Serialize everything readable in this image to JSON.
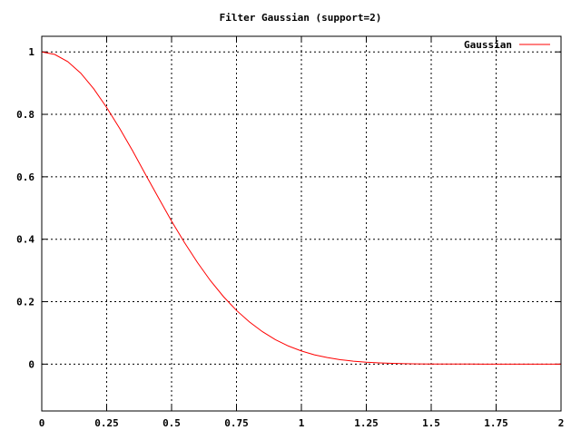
{
  "chart_data": {
    "type": "line",
    "title": "Filter Gaussian (support=2)",
    "xlabel": "",
    "ylabel": "",
    "xlim": [
      0,
      2
    ],
    "ylim": [
      -0.15,
      1.05
    ],
    "xticks": [
      0,
      0.25,
      0.5,
      0.75,
      1,
      1.25,
      1.5,
      1.75,
      2
    ],
    "xtick_labels": [
      "0",
      "0.25",
      "0.5",
      "0.75",
      "1",
      "1.25",
      "1.5",
      "1.75",
      "2"
    ],
    "yticks": [
      0,
      0.2,
      0.4,
      0.6,
      0.8,
      1
    ],
    "ytick_labels": [
      "0",
      "0.2",
      "0.4",
      "0.6",
      "0.8",
      "1"
    ],
    "grid": true,
    "legend": "top-right",
    "series": [
      {
        "name": "Gaussian",
        "color": "#ff0000",
        "x": [
          0,
          0.05,
          0.1,
          0.15,
          0.2,
          0.25,
          0.3,
          0.35,
          0.4,
          0.45,
          0.5,
          0.55,
          0.6,
          0.65,
          0.7,
          0.75,
          0.8,
          0.85,
          0.9,
          0.95,
          1,
          1.05,
          1.1,
          1.15,
          1.2,
          1.25,
          1.3,
          1.35,
          1.4,
          1.45,
          1.5,
          1.55,
          1.6,
          1.65,
          1.7,
          1.75,
          1.8,
          1.85,
          1.9,
          1.95,
          2
        ],
        "values": [
          1,
          0.992,
          0.969,
          0.932,
          0.882,
          0.822,
          0.755,
          0.683,
          0.607,
          0.532,
          0.458,
          0.389,
          0.325,
          0.267,
          0.216,
          0.172,
          0.135,
          0.104,
          0.0785,
          0.058,
          0.042,
          0.03,
          0.021,
          0.0142,
          0.0094,
          0.0061,
          0.0039,
          0.0024,
          0.0014,
          0.0008,
          0.0005,
          0.0003,
          0.0002,
          0.0001,
          0,
          0,
          0,
          0,
          0,
          0,
          0
        ]
      }
    ]
  }
}
